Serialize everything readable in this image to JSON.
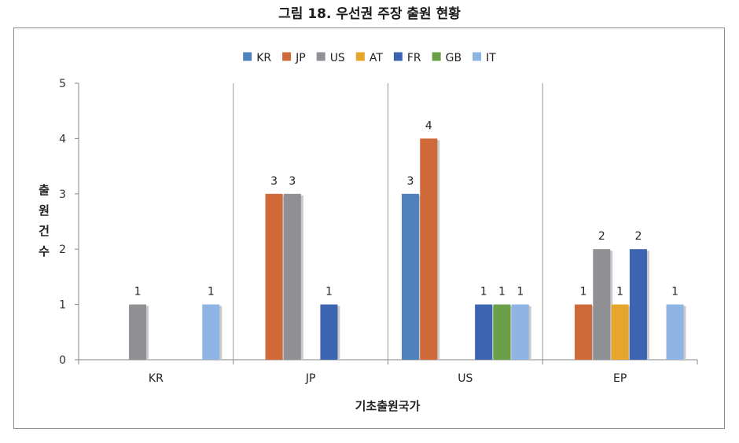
{
  "title": "그림 18. 우선권 주장 출원 현황",
  "chart_data": {
    "type": "bar",
    "title": "그림 18. 우선권 주장 출원 현황",
    "xlabel": "기초출원국가",
    "ylabel": "출원건수",
    "ylim": [
      0,
      5
    ],
    "yticks": [
      0,
      1,
      2,
      3,
      4,
      5
    ],
    "grid": false,
    "category_separators": true,
    "legend_position": "top",
    "categories": [
      "KR",
      "JP",
      "US",
      "EP"
    ],
    "series": [
      {
        "name": "KR",
        "color": "#4f81bd",
        "values": [
          null,
          null,
          3,
          null
        ]
      },
      {
        "name": "JP",
        "color": "#d0693a",
        "values": [
          null,
          3,
          4,
          1
        ]
      },
      {
        "name": "US",
        "color": "#8e9093",
        "values": [
          1,
          3,
          null,
          2
        ]
      },
      {
        "name": "AT",
        "color": "#e6a52b",
        "values": [
          null,
          null,
          null,
          1
        ]
      },
      {
        "name": "FR",
        "color": "#3c64b0",
        "values": [
          null,
          1,
          1,
          2
        ]
      },
      {
        "name": "GB",
        "color": "#6aa04a",
        "values": [
          null,
          null,
          1,
          null
        ]
      },
      {
        "name": "IT",
        "color": "#8db4e2",
        "values": [
          1,
          null,
          1,
          1
        ]
      }
    ]
  }
}
